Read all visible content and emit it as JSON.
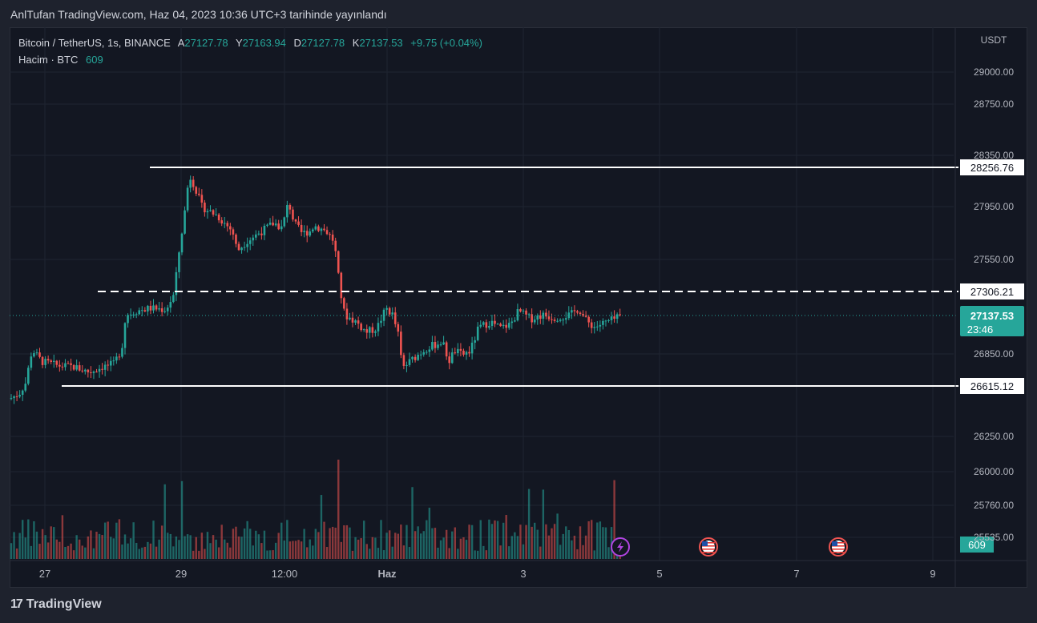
{
  "caption": "AnlTufan TradingView.com, Haz 04, 2023 10:36 UTC+3 tarihinde yayınlandı",
  "legend": {
    "symbol": "Bitcoin / TetherUS, 1s, BINANCE",
    "o_label": "A",
    "o_value": "27127.78",
    "h_label": "Y",
    "h_value": "27163.94",
    "l_label": "D",
    "l_value": "27127.78",
    "c_label": "K",
    "c_value": "27137.53",
    "change": "+9.75 (+0.04%)",
    "volume_label": "Hacim · BTC",
    "volume_value": "609"
  },
  "footer": {
    "brand": "TradingView",
    "mark": "17"
  },
  "colors": {
    "up": "#26a69a",
    "down": "#ef5350",
    "bg": "#131722",
    "line": "#ffffff"
  },
  "chart_data": {
    "type": "candlestick",
    "currency": "USDT",
    "price_axis_ticks": [
      "29000.00",
      "28750.00",
      "28350.00",
      "27950.00",
      "27550.00",
      "26850.00",
      "26250.00",
      "26000.00",
      "25760.00",
      "25535.00"
    ],
    "time_axis_ticks": [
      "27",
      "29",
      "12:00",
      "Haz",
      "3",
      "5",
      "7",
      "9"
    ],
    "price_lines": [
      {
        "value": 28256.76,
        "label": "28256.76",
        "style": "solid"
      },
      {
        "value": 27306.21,
        "label": "27306.21",
        "style": "dashed"
      },
      {
        "value": 26615.12,
        "label": "26615.12",
        "style": "solid"
      }
    ],
    "last_price": {
      "value": 27137.53,
      "label": "27137.53",
      "countdown": "23:46"
    },
    "last_volume_label": "609",
    "event_icons": [
      "lightning-icon",
      "us-flag-icon",
      "us-flag-icon"
    ]
  }
}
